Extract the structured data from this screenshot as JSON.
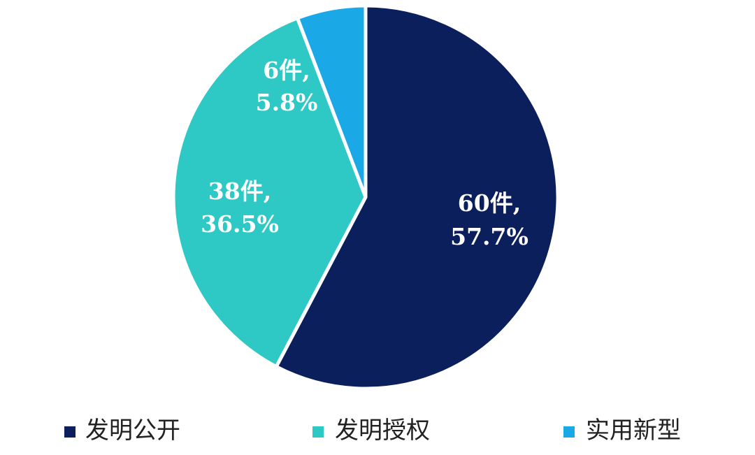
{
  "chart_data": {
    "type": "pie",
    "slices": [
      {
        "name": "发明公开",
        "count": 60,
        "percent": 57.7,
        "label_line1": "60件,",
        "label_line2": "57.7%",
        "color": "#0b1f5c"
      },
      {
        "name": "发明授权",
        "count": 38,
        "percent": 36.5,
        "label_line1": "38件,",
        "label_line2": "36.5%",
        "color": "#2ec9c4"
      },
      {
        "name": "实用新型",
        "count": 6,
        "percent": 5.8,
        "label_line1": "6件,",
        "label_line2": "5.8%",
        "color": "#1aa8e6"
      }
    ],
    "start": "top",
    "direction": "clockwise",
    "legend_position": "bottom"
  }
}
